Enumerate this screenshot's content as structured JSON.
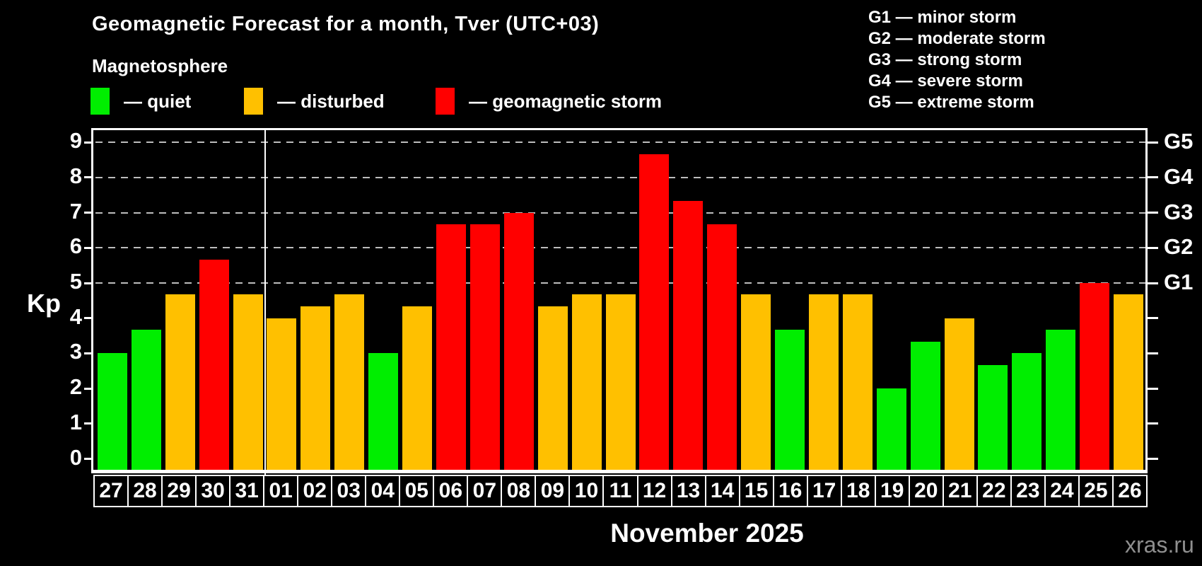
{
  "title": "Geomagnetic Forecast for a month, Tver (UTC+03)",
  "subtitle": "Magnetosphere",
  "legend": [
    {
      "key": "quiet",
      "label": "— quiet",
      "color": "#00ee00"
    },
    {
      "key": "disturbed",
      "label": "— disturbed",
      "color": "#ffc000"
    },
    {
      "key": "storm",
      "label": "— geomagnetic storm",
      "color": "#ff0000"
    }
  ],
  "g_legend": [
    "G1 — minor storm",
    "G2 — moderate storm",
    "G3 — strong storm",
    "G4 — severe storm",
    "G5 — extreme storm"
  ],
  "watermark": "xras.ru",
  "colors": {
    "quiet": "#00ee00",
    "disturbed": "#ffc000",
    "storm": "#ff0000",
    "axis": "#ffffff",
    "grid": "#bdbdbd",
    "background": "#000000",
    "text": "#ffffff",
    "watermark": "#8f8f8f"
  },
  "chart_data": {
    "type": "bar",
    "title": "Geomagnetic Forecast for a month, Tver (UTC+03)",
    "ylabel": "Kp",
    "xlabel": "November 2025",
    "ylim": [
      0,
      9
    ],
    "yticks": [
      0,
      1,
      2,
      3,
      4,
      5,
      6,
      7,
      8,
      9
    ],
    "gridlines_at": [
      5,
      6,
      7,
      8,
      9
    ],
    "grid_style": "dashed horizontal, storm levels only",
    "right_axis_labels": [
      {
        "label": "G1",
        "value": 5
      },
      {
        "label": "G2",
        "value": 6
      },
      {
        "label": "G3",
        "value": 7
      },
      {
        "label": "G4",
        "value": 8
      },
      {
        "label": "G5",
        "value": 9
      }
    ],
    "month_separator_after_index": 4,
    "categories": [
      "27",
      "28",
      "29",
      "30",
      "31",
      "01",
      "02",
      "03",
      "04",
      "05",
      "06",
      "07",
      "08",
      "09",
      "10",
      "11",
      "12",
      "13",
      "14",
      "15",
      "16",
      "17",
      "18",
      "19",
      "20",
      "21",
      "22",
      "23",
      "24",
      "25",
      "26"
    ],
    "values": [
      3.0,
      3.67,
      4.67,
      5.67,
      4.67,
      4.0,
      4.33,
      4.67,
      3.0,
      4.33,
      6.67,
      6.67,
      7.0,
      4.33,
      4.67,
      4.67,
      8.67,
      7.33,
      6.67,
      4.67,
      3.67,
      4.67,
      4.67,
      2.0,
      3.33,
      4.0,
      2.67,
      3.0,
      3.67,
      5.0,
      4.67
    ],
    "statuses": [
      "quiet",
      "quiet",
      "disturbed",
      "storm",
      "disturbed",
      "disturbed",
      "disturbed",
      "disturbed",
      "quiet",
      "disturbed",
      "storm",
      "storm",
      "storm",
      "disturbed",
      "disturbed",
      "disturbed",
      "storm",
      "storm",
      "storm",
      "disturbed",
      "quiet",
      "disturbed",
      "disturbed",
      "quiet",
      "quiet",
      "disturbed",
      "quiet",
      "quiet",
      "quiet",
      "storm",
      "disturbed"
    ]
  }
}
